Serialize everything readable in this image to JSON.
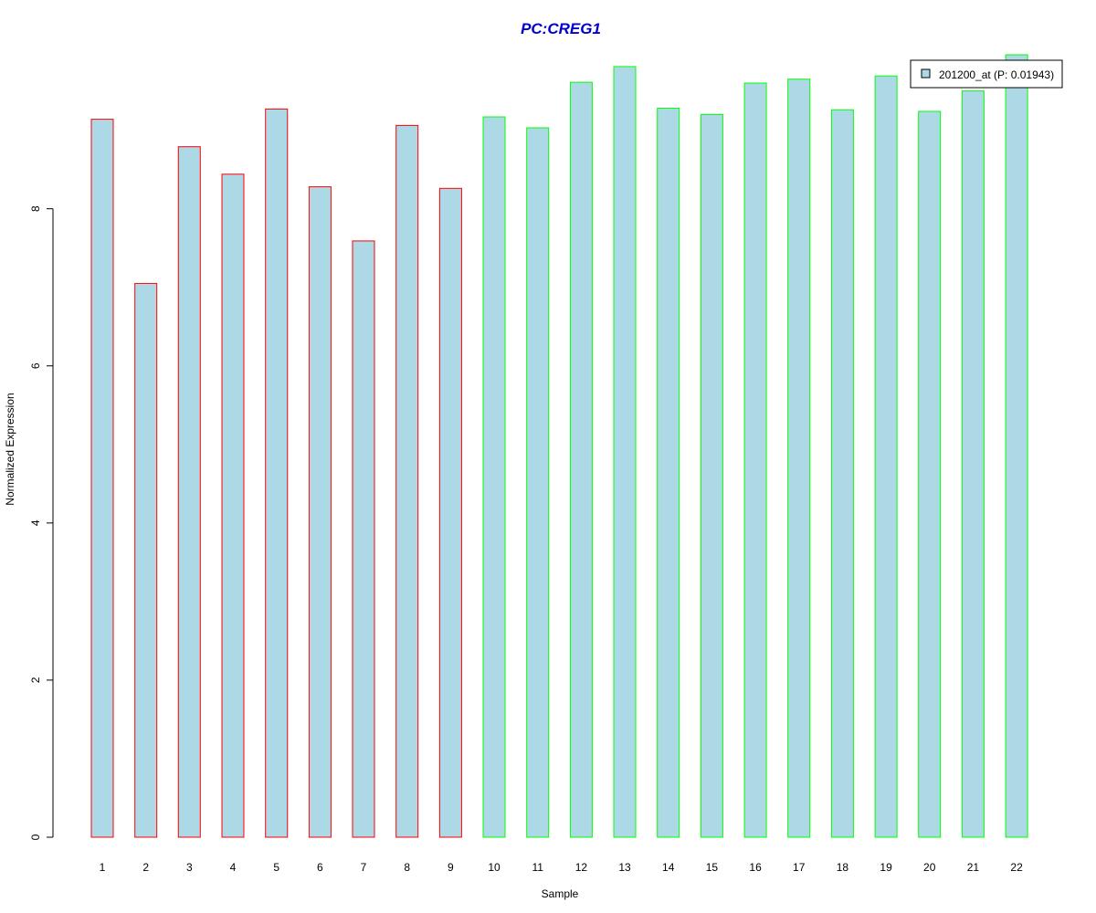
{
  "chart_data": {
    "type": "bar",
    "title": "PC:CREG1",
    "xlabel": "Sample",
    "ylabel": "Normalized Expression",
    "categories": [
      "1",
      "2",
      "3",
      "4",
      "5",
      "6",
      "7",
      "8",
      "9",
      "10",
      "11",
      "12",
      "13",
      "14",
      "15",
      "16",
      "17",
      "18",
      "19",
      "20",
      "21",
      "22"
    ],
    "series": [
      {
        "name": "201200_at (P: 0.01943)",
        "values": [
          9.14,
          7.05,
          8.79,
          8.44,
          9.27,
          8.28,
          7.59,
          9.06,
          8.26,
          9.17,
          9.03,
          9.61,
          9.81,
          9.28,
          9.2,
          9.6,
          9.65,
          9.26,
          9.69,
          9.24,
          9.5,
          9.96
        ]
      }
    ],
    "group_of_sample": [
      1,
      1,
      1,
      1,
      1,
      1,
      1,
      1,
      1,
      2,
      2,
      2,
      2,
      2,
      2,
      2,
      2,
      2,
      2,
      2,
      2,
      2
    ],
    "y_ticks": [
      0,
      2,
      4,
      6,
      8
    ],
    "ylim": [
      0,
      9.96
    ],
    "grid": false,
    "legend_position": "top-right",
    "colors": {
      "title": "#0000cc",
      "bar_fill": "#add8e6",
      "group1_border": "#ff0000",
      "group2_border": "#00ff00",
      "axis": "#000000"
    }
  }
}
